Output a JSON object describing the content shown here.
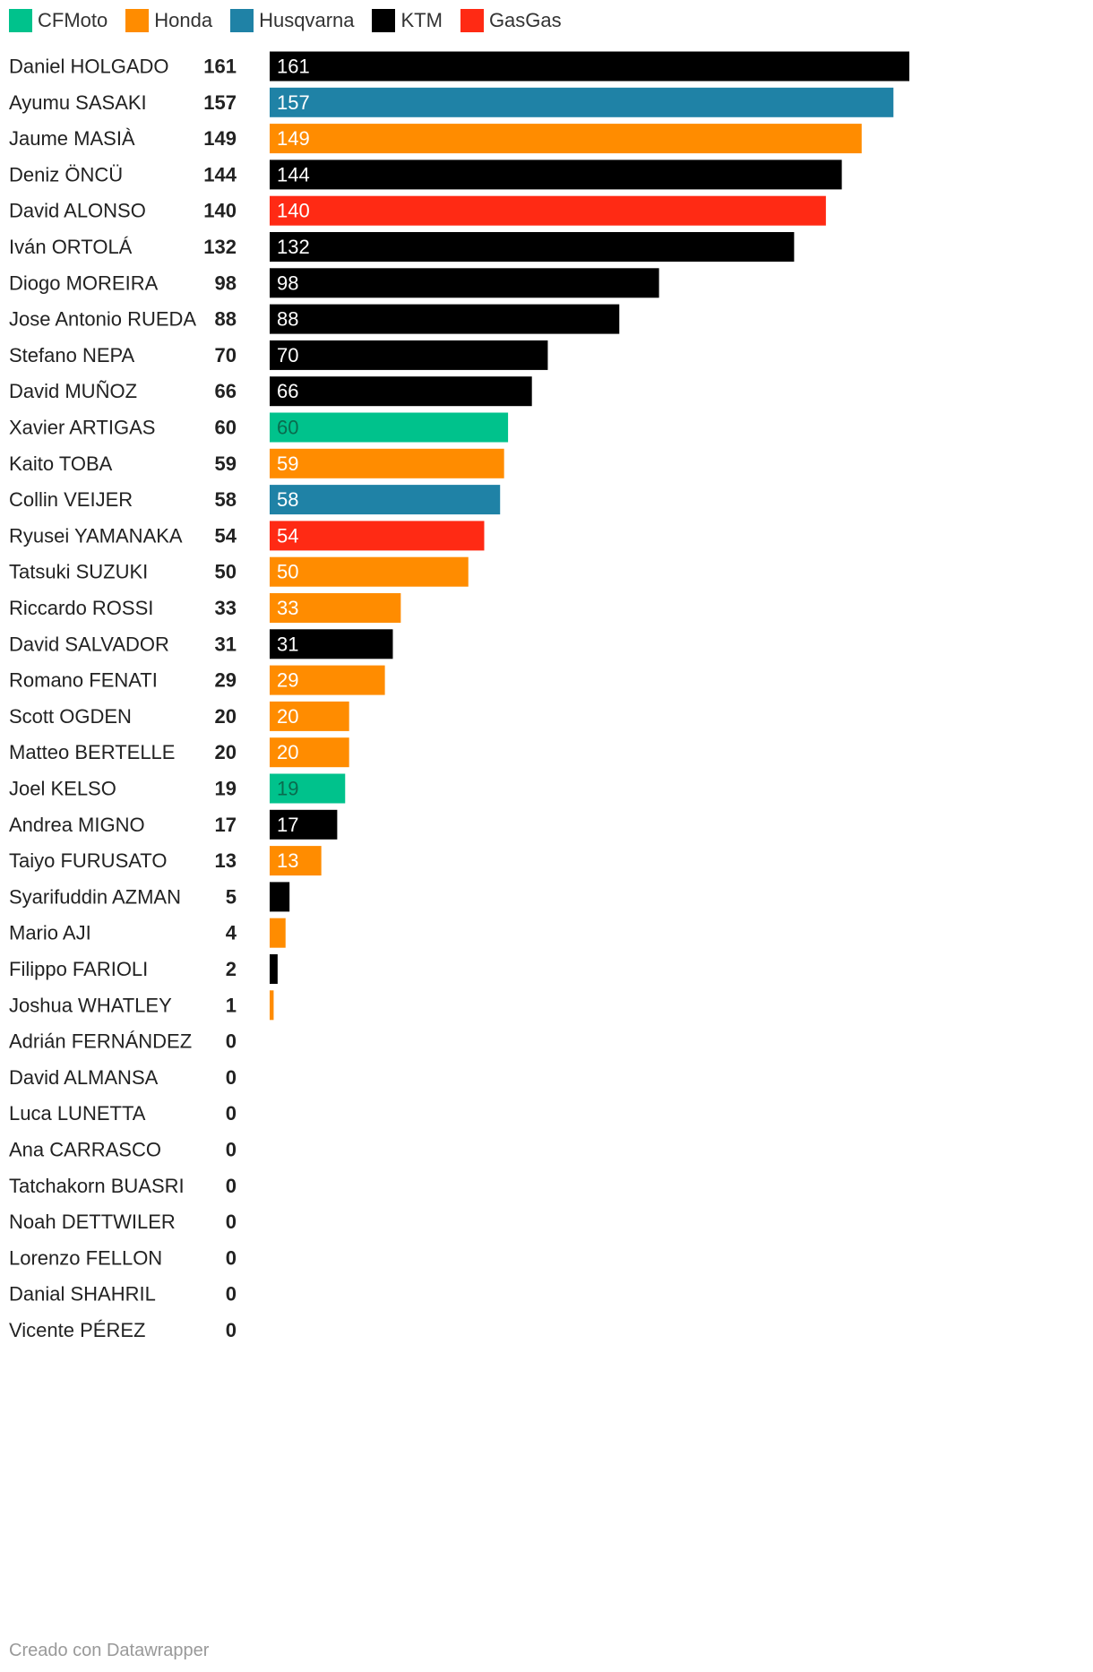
{
  "colors": {
    "CFMoto": "#00c28c",
    "Honda": "#ff8c00",
    "Husqvarna": "#1f82a6",
    "KTM": "#000000",
    "GasGas": "#ff2a14"
  },
  "legend": [
    {
      "label": "CFMoto",
      "color": "#00c28c"
    },
    {
      "label": "Honda",
      "color": "#ff8c00"
    },
    {
      "label": "Husqvarna",
      "color": "#1f82a6"
    },
    {
      "label": "KTM",
      "color": "#000000"
    },
    {
      "label": "GasGas",
      "color": "#ff2a14"
    }
  ],
  "footer": "Creado con Datawrapper",
  "chart_data": {
    "type": "bar",
    "orientation": "horizontal",
    "xlim": [
      0,
      161
    ],
    "grid": false,
    "legend_position": "top-left",
    "rows": [
      {
        "rider": "Daniel HOLGADO",
        "points": 161,
        "team": "KTM"
      },
      {
        "rider": "Ayumu SASAKI",
        "points": 157,
        "team": "Husqvarna"
      },
      {
        "rider": "Jaume MASIÀ",
        "points": 149,
        "team": "Honda"
      },
      {
        "rider": "Deniz ÖNCÜ",
        "points": 144,
        "team": "KTM"
      },
      {
        "rider": "David ALONSO",
        "points": 140,
        "team": "GasGas"
      },
      {
        "rider": "Iván ORTOLÁ",
        "points": 132,
        "team": "KTM"
      },
      {
        "rider": "Diogo MOREIRA",
        "points": 98,
        "team": "KTM"
      },
      {
        "rider": "Jose Antonio RUEDA",
        "points": 88,
        "team": "KTM"
      },
      {
        "rider": "Stefano NEPA",
        "points": 70,
        "team": "KTM"
      },
      {
        "rider": "David MUÑOZ",
        "points": 66,
        "team": "KTM"
      },
      {
        "rider": "Xavier ARTIGAS",
        "points": 60,
        "team": "CFMoto"
      },
      {
        "rider": "Kaito TOBA",
        "points": 59,
        "team": "Honda"
      },
      {
        "rider": "Collin VEIJER",
        "points": 58,
        "team": "Husqvarna"
      },
      {
        "rider": "Ryusei YAMANAKA",
        "points": 54,
        "team": "GasGas"
      },
      {
        "rider": "Tatsuki SUZUKI",
        "points": 50,
        "team": "Honda"
      },
      {
        "rider": "Riccardo ROSSI",
        "points": 33,
        "team": "Honda"
      },
      {
        "rider": "David SALVADOR",
        "points": 31,
        "team": "KTM"
      },
      {
        "rider": "Romano FENATI",
        "points": 29,
        "team": "Honda"
      },
      {
        "rider": "Scott OGDEN",
        "points": 20,
        "team": "Honda"
      },
      {
        "rider": "Matteo BERTELLE",
        "points": 20,
        "team": "Honda"
      },
      {
        "rider": "Joel KELSO",
        "points": 19,
        "team": "CFMoto"
      },
      {
        "rider": "Andrea MIGNO",
        "points": 17,
        "team": "KTM"
      },
      {
        "rider": "Taiyo FURUSATO",
        "points": 13,
        "team": "Honda"
      },
      {
        "rider": "Syarifuddin AZMAN",
        "points": 5,
        "team": "KTM"
      },
      {
        "rider": "Mario AJI",
        "points": 4,
        "team": "Honda"
      },
      {
        "rider": "Filippo FARIOLI",
        "points": 2,
        "team": "KTM"
      },
      {
        "rider": "Joshua WHATLEY",
        "points": 1,
        "team": "Honda"
      },
      {
        "rider": "Adrián FERNÁNDEZ",
        "points": 0,
        "team": null
      },
      {
        "rider": "David ALMANSA",
        "points": 0,
        "team": null
      },
      {
        "rider": "Luca LUNETTA",
        "points": 0,
        "team": null
      },
      {
        "rider": "Ana CARRASCO",
        "points": 0,
        "team": null
      },
      {
        "rider": "Tatchakorn BUASRI",
        "points": 0,
        "team": null
      },
      {
        "rider": "Noah DETTWILER",
        "points": 0,
        "team": null
      },
      {
        "rider": "Lorenzo FELLON",
        "points": 0,
        "team": null
      },
      {
        "rider": "Danial SHAHRIL",
        "points": 0,
        "team": null
      },
      {
        "rider": "Vicente PÉREZ",
        "points": 0,
        "team": null
      }
    ]
  }
}
